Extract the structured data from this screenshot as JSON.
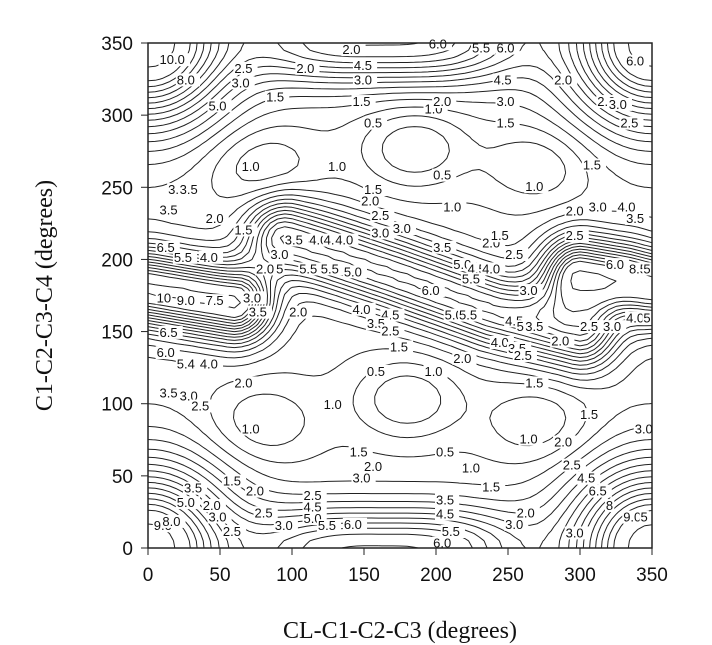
{
  "chart_data": {
    "type": "contour",
    "title": "",
    "xlabel": "CL-C1-C2-C3 (degrees)",
    "ylabel": "C1-C2-C3-C4 (degrees)",
    "xlim": [
      0,
      350
    ],
    "ylim": [
      0,
      350
    ],
    "xticks": [
      0,
      50,
      100,
      150,
      200,
      250,
      300,
      350
    ],
    "yticks": [
      0,
      50,
      100,
      150,
      200,
      250,
      300,
      350
    ],
    "grid": false,
    "line_color": "#222222",
    "wells": [
      {
        "x": 185,
        "y": 277,
        "level": 0.5
      },
      {
        "x": 180,
        "y": 103,
        "level": 0.5
      },
      {
        "x": 80,
        "y": 265,
        "level": 1.0
      },
      {
        "x": 270,
        "y": 265,
        "level": 1.0
      },
      {
        "x": 80,
        "y": 87,
        "level": 1.0
      },
      {
        "x": 270,
        "y": 87,
        "level": 1.0
      }
    ],
    "barrier_ridges": [
      {
        "name": "central",
        "points": [
          [
            95,
            215
          ],
          [
            170,
            190
          ],
          [
            240,
            165
          ],
          [
            300,
            150
          ]
        ]
      },
      {
        "name": "left-edge",
        "points": [
          [
            0,
            180
          ],
          [
            30,
            175
          ],
          [
            60,
            170
          ]
        ]
      },
      {
        "name": "right-edge",
        "points": [
          [
            300,
            190
          ],
          [
            330,
            185
          ],
          [
            350,
            180
          ]
        ]
      }
    ],
    "contour_labels": [
      {
        "x": 8,
        "y": 336,
        "text": "10.0"
      },
      {
        "x": 20,
        "y": 322,
        "text": "8.0"
      },
      {
        "x": 42,
        "y": 304,
        "text": "5.0"
      },
      {
        "x": 58,
        "y": 320,
        "text": "3.0"
      },
      {
        "x": 60,
        "y": 330,
        "text": "2.5"
      },
      {
        "x": 82,
        "y": 310,
        "text": "1.5"
      },
      {
        "x": 103,
        "y": 330,
        "text": "2.0"
      },
      {
        "x": 135,
        "y": 343,
        "text": "2.0"
      },
      {
        "x": 143,
        "y": 332,
        "text": "4.5"
      },
      {
        "x": 143,
        "y": 322,
        "text": "3.0"
      },
      {
        "x": 142,
        "y": 307,
        "text": "1.5"
      },
      {
        "x": 195,
        "y": 347,
        "text": "6.0"
      },
      {
        "x": 225,
        "y": 344,
        "text": "5.5"
      },
      {
        "x": 242,
        "y": 344,
        "text": "6.0"
      },
      {
        "x": 192,
        "y": 302,
        "text": "1.0"
      },
      {
        "x": 198,
        "y": 307,
        "text": "2.0"
      },
      {
        "x": 150,
        "y": 292,
        "text": "0.5"
      },
      {
        "x": 240,
        "y": 322,
        "text": "4.5"
      },
      {
        "x": 242,
        "y": 307,
        "text": "3.0"
      },
      {
        "x": 242,
        "y": 292,
        "text": "1.5"
      },
      {
        "x": 282,
        "y": 322,
        "text": "2.0"
      },
      {
        "x": 312,
        "y": 307,
        "text": "2.0"
      },
      {
        "x": 320,
        "y": 305,
        "text": "3.0"
      },
      {
        "x": 332,
        "y": 335,
        "text": "6.0"
      },
      {
        "x": 328,
        "y": 292,
        "text": "2.5"
      },
      {
        "x": 302,
        "y": 263,
        "text": "1.5"
      },
      {
        "x": 65,
        "y": 262,
        "text": "1.0"
      },
      {
        "x": 125,
        "y": 262,
        "text": "1.0"
      },
      {
        "x": 262,
        "y": 248,
        "text": "1.0"
      },
      {
        "x": 198,
        "y": 256,
        "text": "0.5"
      },
      {
        "x": 205,
        "y": 234,
        "text": "1.0"
      },
      {
        "x": 148,
        "y": 238,
        "text": "2.0"
      },
      {
        "x": 150,
        "y": 246,
        "text": "1.5"
      },
      {
        "x": 155,
        "y": 228,
        "text": "2.5"
      },
      {
        "x": 14,
        "y": 246,
        "text": "3.0"
      },
      {
        "x": 22,
        "y": 246,
        "text": "3.5"
      },
      {
        "x": 8,
        "y": 232,
        "text": "3.5"
      },
      {
        "x": 40,
        "y": 226,
        "text": "2.0"
      },
      {
        "x": 60,
        "y": 218,
        "text": "1.5"
      },
      {
        "x": 95,
        "y": 211,
        "text": "3.5"
      },
      {
        "x": 112,
        "y": 211,
        "text": "4.0"
      },
      {
        "x": 122,
        "y": 211,
        "text": "4.5"
      },
      {
        "x": 130,
        "y": 211,
        "text": "4.0"
      },
      {
        "x": 155,
        "y": 216,
        "text": "3.0"
      },
      {
        "x": 170,
        "y": 219,
        "text": "3.0"
      },
      {
        "x": 198,
        "y": 206,
        "text": "3.5"
      },
      {
        "x": 232,
        "y": 209,
        "text": "2.0"
      },
      {
        "x": 238,
        "y": 214,
        "text": "1.5"
      },
      {
        "x": 248,
        "y": 201,
        "text": "2.5"
      },
      {
        "x": 290,
        "y": 231,
        "text": "2.0"
      },
      {
        "x": 306,
        "y": 234,
        "text": "3.0"
      },
      {
        "x": 326,
        "y": 234,
        "text": "4.0"
      },
      {
        "x": 332,
        "y": 226,
        "text": "3.5"
      },
      {
        "x": 290,
        "y": 214,
        "text": "2.5"
      },
      {
        "x": 6,
        "y": 206,
        "text": "6.5"
      },
      {
        "x": 18,
        "y": 199,
        "text": "5.5"
      },
      {
        "x": 36,
        "y": 199,
        "text": "4.0"
      },
      {
        "x": 85,
        "y": 201,
        "text": "3.0"
      },
      {
        "x": 75,
        "y": 191,
        "text": "2.0"
      },
      {
        "x": 89,
        "y": 191,
        "text": "5"
      },
      {
        "x": 105,
        "y": 191,
        "text": "5.5"
      },
      {
        "x": 120,
        "y": 191,
        "text": "5.5"
      },
      {
        "x": 136,
        "y": 189,
        "text": "5.0"
      },
      {
        "x": 212,
        "y": 194,
        "text": "5.0"
      },
      {
        "x": 222,
        "y": 191,
        "text": "4.5"
      },
      {
        "x": 232,
        "y": 191,
        "text": "4.0"
      },
      {
        "x": 218,
        "y": 184,
        "text": "5.5"
      },
      {
        "x": 190,
        "y": 176,
        "text": "6.0"
      },
      {
        "x": 258,
        "y": 176,
        "text": "3.0"
      },
      {
        "x": 318,
        "y": 194,
        "text": "6.0"
      },
      {
        "x": 334,
        "y": 191,
        "text": "8.5"
      },
      {
        "x": 344,
        "y": 191,
        "text": "5"
      },
      {
        "x": 6,
        "y": 171,
        "text": "10"
      },
      {
        "x": 20,
        "y": 169,
        "text": "9.0"
      },
      {
        "x": 40,
        "y": 169,
        "text": "7.5"
      },
      {
        "x": 66,
        "y": 171,
        "text": "3.0"
      },
      {
        "x": 70,
        "y": 161,
        "text": "3.5"
      },
      {
        "x": 98,
        "y": 161,
        "text": "2.0"
      },
      {
        "x": 142,
        "y": 163,
        "text": "4.0"
      },
      {
        "x": 162,
        "y": 159,
        "text": "4.5"
      },
      {
        "x": 152,
        "y": 153,
        "text": "3.5"
      },
      {
        "x": 162,
        "y": 148,
        "text": "2.5"
      },
      {
        "x": 206,
        "y": 159,
        "text": "5.0"
      },
      {
        "x": 216,
        "y": 159,
        "text": "5.5"
      },
      {
        "x": 248,
        "y": 155,
        "text": "4.5"
      },
      {
        "x": 256,
        "y": 151,
        "text": "5"
      },
      {
        "x": 262,
        "y": 151,
        "text": "3.5"
      },
      {
        "x": 238,
        "y": 140,
        "text": "4.0"
      },
      {
        "x": 250,
        "y": 136,
        "text": "3.5"
      },
      {
        "x": 254,
        "y": 131,
        "text": "2.5"
      },
      {
        "x": 280,
        "y": 141,
        "text": "2.0"
      },
      {
        "x": 300,
        "y": 151,
        "text": "2.5"
      },
      {
        "x": 316,
        "y": 151,
        "text": "3.0"
      },
      {
        "x": 332,
        "y": 157,
        "text": "4.0"
      },
      {
        "x": 344,
        "y": 157,
        "text": "5"
      },
      {
        "x": 8,
        "y": 147,
        "text": "6.5"
      },
      {
        "x": 6,
        "y": 133,
        "text": "6.0"
      },
      {
        "x": 20,
        "y": 125,
        "text": "5.4"
      },
      {
        "x": 36,
        "y": 125,
        "text": "4.0"
      },
      {
        "x": 60,
        "y": 112,
        "text": "2.0"
      },
      {
        "x": 8,
        "y": 105,
        "text": "3.5"
      },
      {
        "x": 22,
        "y": 103,
        "text": "3.0"
      },
      {
        "x": 30,
        "y": 96,
        "text": "2.5"
      },
      {
        "x": 168,
        "y": 137,
        "text": "1.5"
      },
      {
        "x": 212,
        "y": 129,
        "text": "2.0"
      },
      {
        "x": 152,
        "y": 120,
        "text": "0.5"
      },
      {
        "x": 192,
        "y": 120,
        "text": "1.0"
      },
      {
        "x": 262,
        "y": 112,
        "text": "1.5"
      },
      {
        "x": 122,
        "y": 97,
        "text": "1.0"
      },
      {
        "x": 300,
        "y": 90,
        "text": "1.5"
      },
      {
        "x": 338,
        "y": 80,
        "text": "3.0"
      },
      {
        "x": 65,
        "y": 80,
        "text": "1.0"
      },
      {
        "x": 258,
        "y": 73,
        "text": "1.0"
      },
      {
        "x": 282,
        "y": 71,
        "text": "2.0"
      },
      {
        "x": 200,
        "y": 64,
        "text": "0.5"
      },
      {
        "x": 140,
        "y": 64,
        "text": "1.5"
      },
      {
        "x": 150,
        "y": 54,
        "text": "2.0"
      },
      {
        "x": 142,
        "y": 46,
        "text": "3.0"
      },
      {
        "x": 218,
        "y": 53,
        "text": "1.0"
      },
      {
        "x": 288,
        "y": 55,
        "text": "2.5"
      },
      {
        "x": 298,
        "y": 46,
        "text": "4.5"
      },
      {
        "x": 306,
        "y": 37,
        "text": "6.5"
      },
      {
        "x": 318,
        "y": 27,
        "text": "8"
      },
      {
        "x": 330,
        "y": 19,
        "text": "9.0"
      },
      {
        "x": 342,
        "y": 19,
        "text": "5"
      },
      {
        "x": 232,
        "y": 40,
        "text": "1.5"
      },
      {
        "x": 52,
        "y": 44,
        "text": "1.5"
      },
      {
        "x": 68,
        "y": 37,
        "text": "2.0"
      },
      {
        "x": 25,
        "y": 39,
        "text": "3.5"
      },
      {
        "x": 20,
        "y": 29,
        "text": "5.0"
      },
      {
        "x": 38,
        "y": 27,
        "text": "2.0"
      },
      {
        "x": 42,
        "y": 19,
        "text": "3.0"
      },
      {
        "x": 4,
        "y": 13,
        "text": "9.0"
      },
      {
        "x": 10,
        "y": 16,
        "text": "8.0"
      },
      {
        "x": 52,
        "y": 9,
        "text": "2.5"
      },
      {
        "x": 74,
        "y": 22,
        "text": "2.5"
      },
      {
        "x": 88,
        "y": 13,
        "text": "3.0"
      },
      {
        "x": 108,
        "y": 34,
        "text": "2.5"
      },
      {
        "x": 108,
        "y": 26,
        "text": "4.5"
      },
      {
        "x": 108,
        "y": 18,
        "text": "5.0"
      },
      {
        "x": 118,
        "y": 13,
        "text": "5.5"
      },
      {
        "x": 136,
        "y": 14,
        "text": "6.0"
      },
      {
        "x": 200,
        "y": 31,
        "text": "3.5"
      },
      {
        "x": 200,
        "y": 21,
        "text": "4.5"
      },
      {
        "x": 204,
        "y": 9,
        "text": "5.5"
      },
      {
        "x": 198,
        "y": 1,
        "text": "6.0"
      },
      {
        "x": 248,
        "y": 14,
        "text": "3.0"
      },
      {
        "x": 256,
        "y": 22,
        "text": "2.0"
      },
      {
        "x": 290,
        "y": 8,
        "text": "3.0"
      }
    ]
  }
}
